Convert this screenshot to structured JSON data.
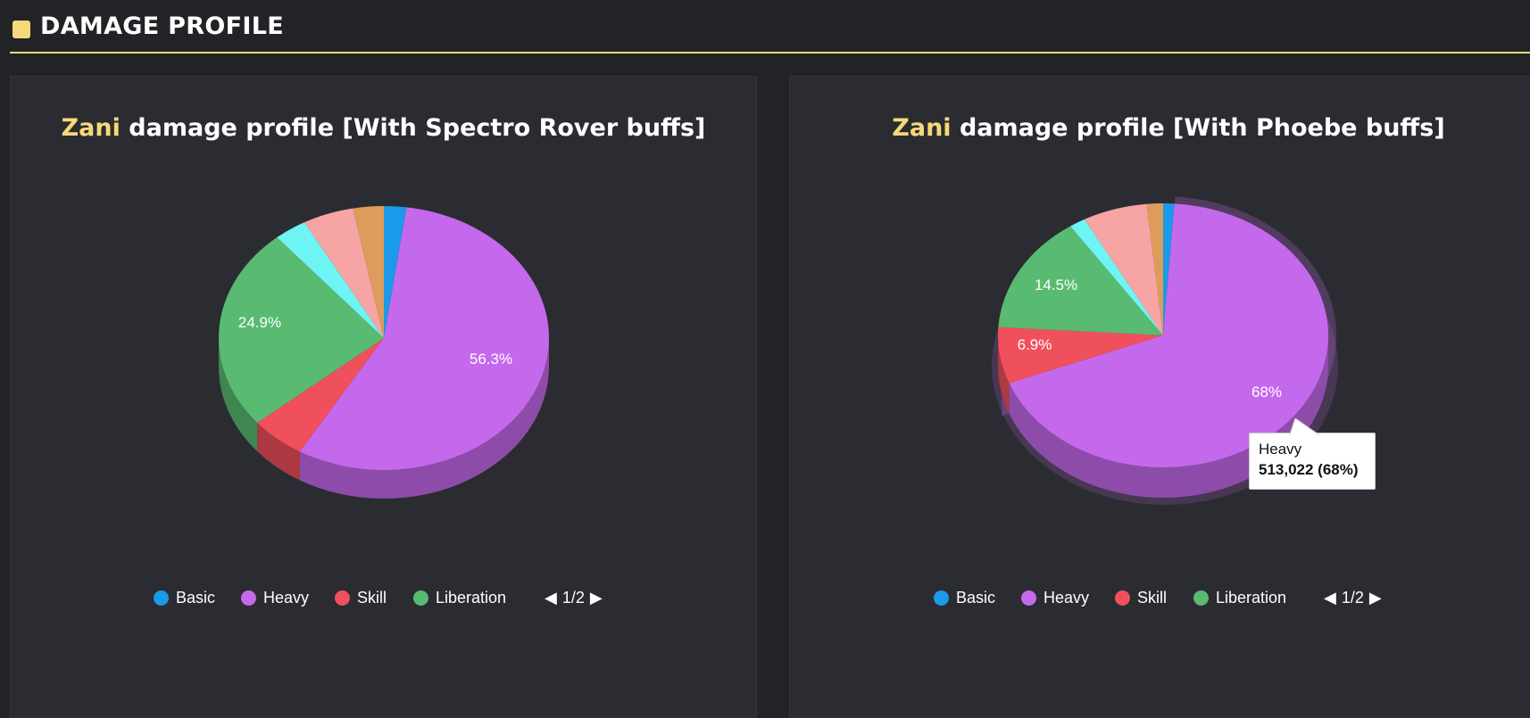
{
  "section": {
    "title": "DAMAGE PROFILE"
  },
  "legend_items": [
    {
      "label": "Basic",
      "color": "#1a9ae8"
    },
    {
      "label": "Heavy",
      "color": "#c569ec"
    },
    {
      "label": "Skill",
      "color": "#f0505b"
    },
    {
      "label": "Liberation",
      "color": "#59ba72"
    }
  ],
  "pager": {
    "text": "1/2",
    "prev_icon": "triangle-left",
    "next_icon": "triangle-right"
  },
  "chart_data": [
    {
      "type": "pie",
      "title_highlight": "Zani",
      "title_rest": " damage profile [With Spectro Rover buffs]",
      "slices": [
        {
          "name": "Basic",
          "value": 2.2,
          "color": "#1a9ae8",
          "label": ""
        },
        {
          "name": "Heavy",
          "value": 56.3,
          "color": "#c569ec",
          "label": "56.3%"
        },
        {
          "name": "Skill",
          "value": 5.4,
          "color": "#f0505b",
          "label": ""
        },
        {
          "name": "Liberation",
          "value": 24.9,
          "color": "#59ba72",
          "label": "24.9%"
        },
        {
          "name": "",
          "value": 3.2,
          "color": "#6ff4f4",
          "label": ""
        },
        {
          "name": "",
          "value": 5.0,
          "color": "#f7a4a4",
          "label": ""
        },
        {
          "name": "",
          "value": 3.0,
          "color": "#dd9c5b",
          "label": ""
        }
      ],
      "legend": "bottom"
    },
    {
      "type": "pie",
      "title_highlight": "Zani",
      "title_rest": " damage profile [With Phoebe buffs]",
      "slices": [
        {
          "name": "Basic",
          "value": 1.1,
          "color": "#1a9ae8",
          "label": ""
        },
        {
          "name": "Heavy",
          "value": 68,
          "color": "#c569ec",
          "label": "68%"
        },
        {
          "name": "Skill",
          "value": 6.9,
          "color": "#f0505b",
          "label": "6.9%"
        },
        {
          "name": "Liberation",
          "value": 14.5,
          "color": "#59ba72",
          "label": "14.5%"
        },
        {
          "name": "",
          "value": 1.6,
          "color": "#6ff4f4",
          "label": ""
        },
        {
          "name": "",
          "value": 6.3,
          "color": "#f7a4a4",
          "label": ""
        },
        {
          "name": "",
          "value": 1.6,
          "color": "#dd9c5b",
          "label": ""
        }
      ],
      "legend": "bottom",
      "tooltip": {
        "label": "Heavy",
        "value": "513,022 (68%)"
      }
    }
  ]
}
